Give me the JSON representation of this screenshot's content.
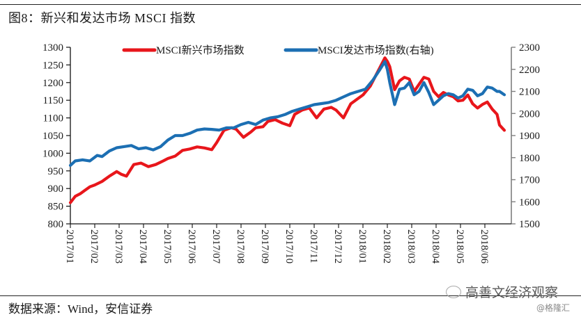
{
  "figure": {
    "title": "图8：新兴和发达市场 MSCI 指数",
    "source": "数据来源：Wind，安信证券",
    "watermark": "高善文经济观察",
    "credit": "@格隆汇"
  },
  "chart_data": {
    "type": "line",
    "title": "图8：新兴和发达市场 MSCI 指数",
    "xlabel": "",
    "ylabel": "",
    "x_ticks": [
      "2017/01",
      "2017/02",
      "2017/03",
      "2017/04",
      "2017/05",
      "2017/06",
      "2017/07",
      "2017/08",
      "2017/09",
      "2017/10",
      "2017/11",
      "2017/12",
      "2018/01",
      "2018/02",
      "2018/03",
      "2018/04",
      "2018/05",
      "2018/06"
    ],
    "y_left": {
      "ticks": [
        800,
        850,
        900,
        950,
        1000,
        1050,
        1100,
        1150,
        1200,
        1250,
        1300
      ],
      "ylim": [
        800,
        1300
      ]
    },
    "y_right": {
      "ticks": [
        1500,
        1600,
        1700,
        1800,
        1900,
        2000,
        2100,
        2200,
        2300
      ],
      "ylim": [
        1500,
        2300
      ]
    },
    "grid": false,
    "legend_position": "top",
    "series": [
      {
        "name": "MSCI新兴市场指数",
        "axis": "left",
        "color": "#e8161b",
        "x": [
          0,
          0.2,
          0.4,
          0.6,
          0.8,
          1.0,
          1.3,
          1.6,
          1.9,
          2.1,
          2.3,
          2.6,
          2.9,
          3.2,
          3.5,
          3.8,
          4.0,
          4.3,
          4.6,
          4.9,
          5.2,
          5.5,
          5.8,
          6.0,
          6.3,
          6.6,
          6.8,
          7.1,
          7.4,
          7.6,
          7.9,
          8.1,
          8.4,
          8.7,
          9.0,
          9.2,
          9.5,
          9.8,
          10.1,
          10.4,
          10.7,
          10.9,
          11.2,
          11.5,
          11.7,
          12.0,
          12.3,
          12.6,
          12.9,
          13.0,
          13.1,
          13.3,
          13.5,
          13.7,
          13.9,
          14.1,
          14.3,
          14.5,
          14.7,
          14.9,
          15.1,
          15.3,
          15.5,
          15.7,
          15.9,
          16.1,
          16.3,
          16.5,
          16.7,
          16.9,
          17.1,
          17.3,
          17.5,
          17.6,
          17.8
        ],
        "values": [
          860,
          878,
          885,
          895,
          905,
          910,
          920,
          935,
          948,
          940,
          935,
          968,
          972,
          962,
          968,
          978,
          985,
          992,
          1008,
          1012,
          1018,
          1015,
          1010,
          1030,
          1065,
          1072,
          1068,
          1045,
          1060,
          1072,
          1075,
          1090,
          1095,
          1085,
          1078,
          1110,
          1122,
          1128,
          1100,
          1125,
          1130,
          1122,
          1100,
          1140,
          1150,
          1165,
          1190,
          1230,
          1270,
          1260,
          1245,
          1180,
          1205,
          1215,
          1210,
          1175,
          1195,
          1215,
          1210,
          1175,
          1160,
          1172,
          1165,
          1160,
          1148,
          1150,
          1165,
          1140,
          1128,
          1138,
          1145,
          1125,
          1110,
          1080,
          1065
        ]
      },
      {
        "name": "MSCI发达市场指数(右轴)",
        "axis": "right",
        "color": "#1c6fb3",
        "x": [
          0,
          0.2,
          0.5,
          0.8,
          1.1,
          1.3,
          1.6,
          1.9,
          2.2,
          2.5,
          2.8,
          3.1,
          3.4,
          3.7,
          4.0,
          4.3,
          4.6,
          4.9,
          5.2,
          5.5,
          5.8,
          6.1,
          6.4,
          6.7,
          7.0,
          7.3,
          7.6,
          7.9,
          8.2,
          8.5,
          8.8,
          9.1,
          9.4,
          9.7,
          10.0,
          10.3,
          10.6,
          10.9,
          11.2,
          11.5,
          11.8,
          12.1,
          12.4,
          12.7,
          12.9,
          13.0,
          13.1,
          13.3,
          13.5,
          13.7,
          13.9,
          14.1,
          14.3,
          14.5,
          14.7,
          14.9,
          15.1,
          15.3,
          15.5,
          15.7,
          15.9,
          16.1,
          16.3,
          16.5,
          16.7,
          16.9,
          17.1,
          17.3,
          17.5,
          17.6,
          17.8
        ],
        "values": [
          1765,
          1785,
          1790,
          1785,
          1810,
          1805,
          1830,
          1845,
          1850,
          1855,
          1840,
          1845,
          1835,
          1850,
          1880,
          1900,
          1900,
          1910,
          1925,
          1930,
          1928,
          1925,
          1935,
          1935,
          1950,
          1960,
          1950,
          1970,
          1980,
          1985,
          1995,
          2010,
          2020,
          2030,
          2040,
          2045,
          2050,
          2060,
          2075,
          2090,
          2100,
          2110,
          2150,
          2200,
          2235,
          2200,
          2140,
          2040,
          2110,
          2115,
          2140,
          2085,
          2100,
          2140,
          2095,
          2040,
          2060,
          2080,
          2090,
          2085,
          2070,
          2080,
          2110,
          2105,
          2080,
          2090,
          2120,
          2115,
          2100,
          2100,
          2085
        ]
      }
    ]
  }
}
